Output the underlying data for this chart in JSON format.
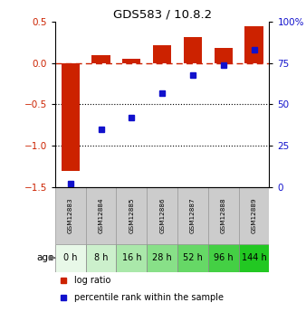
{
  "title": "GDS583 / 10.8.2",
  "samples": [
    "GSM12883",
    "GSM12884",
    "GSM12885",
    "GSM12886",
    "GSM12887",
    "GSM12888",
    "GSM12889"
  ],
  "ages": [
    "0 h",
    "8 h",
    "16 h",
    "28 h",
    "52 h",
    "96 h",
    "144 h"
  ],
  "log_ratio": [
    -1.3,
    0.1,
    0.05,
    0.22,
    0.32,
    0.18,
    0.45
  ],
  "percentile_rank": [
    2,
    35,
    42,
    57,
    68,
    74,
    83
  ],
  "bar_color": "#cc2200",
  "dot_color": "#1111cc",
  "ylim_left": [
    -1.5,
    0.5
  ],
  "ylim_right": [
    0,
    100
  ],
  "yticks_left": [
    -1.5,
    -1.0,
    -0.5,
    0.0,
    0.5
  ],
  "yticks_right": [
    0,
    25,
    50,
    75,
    100
  ],
  "age_colors": [
    "#e8f8e8",
    "#ccf0cc",
    "#aae8aa",
    "#88e088",
    "#66d866",
    "#44d044",
    "#22c822"
  ],
  "gsm_color": "#cccccc",
  "hline_color": "#cc2200",
  "dotline_color": "#000000",
  "bar_width": 0.6,
  "bar_edgecolor": "none"
}
